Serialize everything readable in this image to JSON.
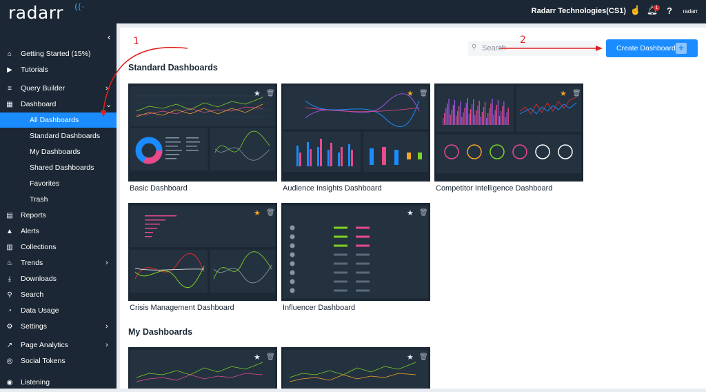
{
  "app": {
    "logo": "radarr",
    "org_name": "Radarr Technologies(CS1)",
    "notification_count": "1",
    "brand_mini": "radarr"
  },
  "sidebar": {
    "items": [
      {
        "label": "Getting Started (15%)",
        "icon": "home-icon"
      },
      {
        "label": "Tutorials",
        "icon": "video-icon"
      },
      {
        "label": "Query Builder",
        "icon": "layers-icon",
        "chevron": "›"
      },
      {
        "label": "Dashboard",
        "icon": "grid-icon",
        "chevron": "⌄"
      },
      {
        "label": "All Dashboards",
        "sub": true,
        "active": true
      },
      {
        "label": "Standard Dashboards",
        "sub": true
      },
      {
        "label": "My Dashboards",
        "sub": true
      },
      {
        "label": "Shared Dashboards",
        "sub": true
      },
      {
        "label": "Favorites",
        "sub": true
      },
      {
        "label": "Trash",
        "sub": true
      },
      {
        "label": "Reports",
        "icon": "document-icon"
      },
      {
        "label": "Alerts",
        "icon": "warning-icon"
      },
      {
        "label": "Collections",
        "icon": "collections-icon"
      },
      {
        "label": "Trends",
        "icon": "flame-icon",
        "chevron": "›"
      },
      {
        "label": "Downloads",
        "icon": "download-icon"
      },
      {
        "label": "Search",
        "icon": "search-icon"
      },
      {
        "label": "Data Usage",
        "icon": "gauge-icon"
      },
      {
        "label": "Settings",
        "icon": "gear-icon",
        "chevron": "›"
      },
      {
        "label": "Page Analytics",
        "icon": "analytics-icon",
        "chevron": "›"
      },
      {
        "label": "Social Tokens",
        "icon": "token-icon"
      },
      {
        "label": "Listening",
        "icon": "listening-icon"
      }
    ]
  },
  "search": {
    "placeholder": "Search"
  },
  "create_button": {
    "label": "Create Dashboard",
    "icon": "+"
  },
  "sections": {
    "standard": "Standard Dashboards",
    "mine": "My Dashboards"
  },
  "cards": {
    "basic": {
      "label": "Basic Dashboard",
      "favorite": false
    },
    "audience": {
      "label": "Audience Insights Dashboard",
      "favorite": true
    },
    "competitor": {
      "label": "Competitor Intelligence Dashboard",
      "favorite": true
    },
    "crisis": {
      "label": "Crisis Management Dashboard",
      "favorite": true
    },
    "influencer": {
      "label": "Influencer Dashboard",
      "favorite": false
    }
  },
  "annotations": {
    "step1": "1",
    "step2": "2"
  },
  "colors": {
    "accent": "#1a8cff",
    "star": "#f5a623",
    "annotation": "#e02020",
    "sidebar": "#1b2734"
  }
}
